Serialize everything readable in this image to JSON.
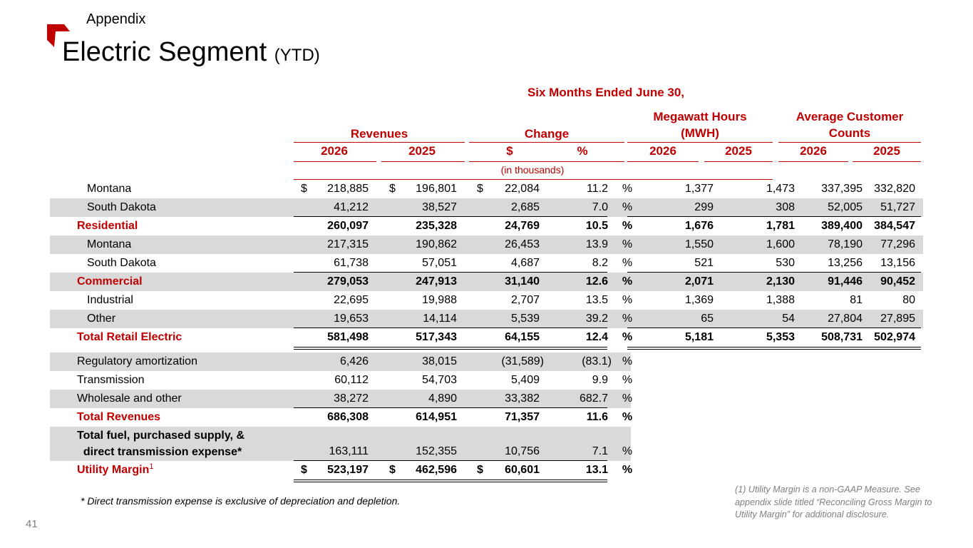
{
  "slide": {
    "section": "Appendix",
    "title": "Electric Segment",
    "title_suffix": "(YTD)",
    "page_number": "41",
    "footnote_left": "* Direct transmission expense is exclusive of depreciation and depletion.",
    "footnote_right": "(1) Utility Margin is a non-GAAP Measure. See appendix slide titled “Reconciling Gross Margin to Utility Margin” for additional disclosure.",
    "brand_color": "#c00000"
  },
  "table": {
    "period_header": "Six Months Ended June 30,",
    "group_revenues": "Revenues",
    "group_change": "Change",
    "group_mwh_line1": "Megawatt Hours",
    "group_mwh_line2": "(MWH)",
    "group_customers_line1": "Average Customer",
    "group_customers_line2": "Counts",
    "col_2026": "2026",
    "col_2025": "2025",
    "col_dollar": "$",
    "col_pct": "%",
    "units_note": "(in thousands)",
    "dollar_sign": "$",
    "pct_sign": "%",
    "rows": [
      {
        "label": "Montana",
        "rev26": "218,885",
        "rev25": "196,801",
        "chg": "22,084",
        "pct": "11.2",
        "mwh26": "1,377",
        "mwh25": "1,473",
        "cust26": "337,395",
        "cust25": "332,820"
      },
      {
        "label": "South Dakota",
        "rev26": "41,212",
        "rev25": "38,527",
        "chg": "2,685",
        "pct": "7.0",
        "mwh26": "299",
        "mwh25": "308",
        "cust26": "52,005",
        "cust25": "51,727"
      },
      {
        "label": "Residential",
        "rev26": "260,097",
        "rev25": "235,328",
        "chg": "24,769",
        "pct": "10.5",
        "mwh26": "1,676",
        "mwh25": "1,781",
        "cust26": "389,400",
        "cust25": "384,547"
      },
      {
        "label": "Montana",
        "rev26": "217,315",
        "rev25": "190,862",
        "chg": "26,453",
        "pct": "13.9",
        "mwh26": "1,550",
        "mwh25": "1,600",
        "cust26": "78,190",
        "cust25": "77,296"
      },
      {
        "label": "South Dakota",
        "rev26": "61,738",
        "rev25": "57,051",
        "chg": "4,687",
        "pct": "8.2",
        "mwh26": "521",
        "mwh25": "530",
        "cust26": "13,256",
        "cust25": "13,156"
      },
      {
        "label": "Commercial",
        "rev26": "279,053",
        "rev25": "247,913",
        "chg": "31,140",
        "pct": "12.6",
        "mwh26": "2,071",
        "mwh25": "2,130",
        "cust26": "91,446",
        "cust25": "90,452"
      },
      {
        "label": "Industrial",
        "rev26": "22,695",
        "rev25": "19,988",
        "chg": "2,707",
        "pct": "13.5",
        "mwh26": "1,369",
        "mwh25": "1,388",
        "cust26": "81",
        "cust25": "80"
      },
      {
        "label": "Other",
        "rev26": "19,653",
        "rev25": "14,114",
        "chg": "5,539",
        "pct": "39.2",
        "mwh26": "65",
        "mwh25": "54",
        "cust26": "27,804",
        "cust25": "27,895"
      },
      {
        "label": "Total Retail Electric",
        "rev26": "581,498",
        "rev25": "517,343",
        "chg": "64,155",
        "pct": "12.4",
        "mwh26": "5,181",
        "mwh25": "5,353",
        "cust26": "508,731",
        "cust25": "502,974"
      },
      {
        "label": "Regulatory amortization",
        "rev26": "6,426",
        "rev25": "38,015",
        "chg": "(31,589)",
        "pct": "(83.1)"
      },
      {
        "label": "Transmission",
        "rev26": "60,112",
        "rev25": "54,703",
        "chg": "5,409",
        "pct": "9.9"
      },
      {
        "label": "Wholesale and other",
        "rev26": "38,272",
        "rev25": "4,890",
        "chg": "33,382",
        "pct": "682.7"
      },
      {
        "label": "Total Revenues",
        "rev26": "686,308",
        "rev25": "614,951",
        "chg": "71,357",
        "pct": "11.6"
      },
      {
        "label_line1": "Total fuel, purchased supply, &",
        "label_line2": "direct transmission expense*",
        "rev26": "163,111",
        "rev25": "152,355",
        "chg": "10,756",
        "pct": "7.1"
      },
      {
        "label": "Utility Margin",
        "label_sup": "1",
        "rev26": "523,197",
        "rev25": "462,596",
        "chg": "60,601",
        "pct": "13.1"
      }
    ]
  }
}
